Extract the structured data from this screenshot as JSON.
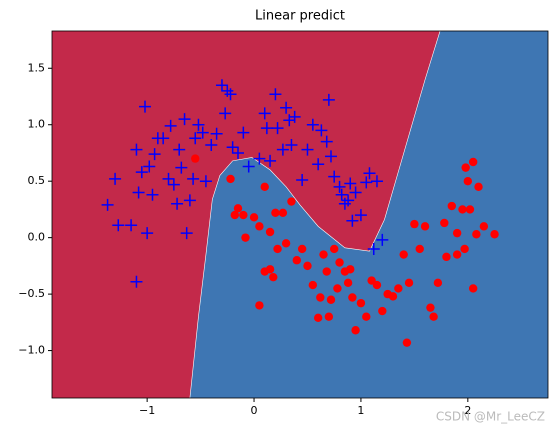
{
  "chart_data": {
    "type": "scatter",
    "title": "Linear predict",
    "xlim": [
      -1.89,
      2.75
    ],
    "ylim": [
      -1.42,
      1.83
    ],
    "xticks": [
      {
        "value": -1,
        "label": "−1"
      },
      0,
      1,
      2
    ],
    "yticks": [
      {
        "value": 1.5,
        "label": "1.5"
      },
      {
        "value": 1.0,
        "label": "1.0"
      },
      {
        "value": 0.5,
        "label": "0.5"
      },
      {
        "value": 0.0,
        "label": "0.0"
      },
      {
        "value": -0.5,
        "label": "−0.5"
      },
      {
        "value": -1.0,
        "label": "−1.0"
      }
    ],
    "boundary": {
      "left_color": "#c3294a",
      "right_color": "#3e76b3",
      "x": [
        -0.6,
        -0.52,
        -0.45,
        -0.39,
        -0.32,
        -0.2,
        -0.02,
        0.15,
        0.3,
        0.43,
        0.6,
        0.85,
        1.08,
        1.22,
        1.41,
        1.6,
        1.74
      ],
      "y": [
        -1.42,
        -0.7,
        -0.15,
        0.34,
        0.55,
        0.68,
        0.71,
        0.6,
        0.45,
        0.29,
        0.1,
        -0.09,
        -0.12,
        0.16,
        0.78,
        1.4,
        1.83
      ]
    },
    "series": [
      {
        "color": "#0000ff",
        "marker": "plus",
        "x": [
          -1.37,
          -1.3,
          -1.27,
          -1.15,
          -1.1,
          -1.1,
          -1.08,
          -1.05,
          -1.02,
          -1.0,
          -0.98,
          -0.95,
          -0.93,
          -0.9,
          -0.85,
          -0.8,
          -0.78,
          -0.75,
          -0.72,
          -0.7,
          -0.68,
          -0.65,
          -0.63,
          -0.6,
          -0.57,
          -0.55,
          -0.52,
          -0.48,
          -0.45,
          -0.4,
          -0.35,
          -0.3,
          -0.27,
          -0.25,
          -0.22,
          -0.2,
          -0.15,
          -0.1,
          -0.05,
          0.05,
          0.1,
          0.12,
          0.15,
          0.2,
          0.22,
          0.27,
          0.3,
          0.33,
          0.35,
          0.38,
          0.45,
          0.5,
          0.55,
          0.6,
          0.63,
          0.68,
          0.7,
          0.72,
          0.75,
          0.8,
          0.82,
          0.85,
          0.88,
          0.9,
          0.95,
          1.0,
          1.05,
          1.08,
          1.15,
          1.2,
          1.12,
          0.92
        ],
        "y": [
          0.29,
          0.52,
          0.11,
          0.11,
          0.78,
          -0.39,
          0.4,
          0.58,
          1.16,
          0.04,
          0.63,
          0.38,
          0.74,
          0.88,
          0.88,
          0.52,
          0.99,
          0.47,
          0.3,
          0.78,
          0.62,
          1.05,
          0.04,
          0.33,
          0.52,
          0.88,
          1.0,
          0.93,
          0.5,
          0.82,
          0.92,
          1.35,
          1.1,
          1.3,
          1.27,
          0.8,
          0.75,
          0.93,
          0.63,
          0.7,
          1.1,
          0.97,
          0.68,
          1.27,
          0.97,
          0.78,
          1.15,
          1.04,
          0.82,
          1.07,
          0.51,
          0.78,
          1.0,
          0.65,
          0.95,
          0.85,
          1.22,
          0.72,
          0.54,
          0.45,
          0.38,
          0.3,
          0.33,
          0.48,
          0.4,
          0.2,
          0.49,
          0.57,
          0.5,
          -0.02,
          -0.1,
          0.15
        ]
      },
      {
        "color": "#ff0000",
        "marker": "circle",
        "x": [
          -0.55,
          -0.22,
          0.2,
          -0.15,
          -0.18,
          -0.1,
          -0.08,
          0,
          0.05,
          0.05,
          0.1,
          0.1,
          0.15,
          0.15,
          0.18,
          0.22,
          0.27,
          0.3,
          0.35,
          0.4,
          0.45,
          0.5,
          0.55,
          0.6,
          0.62,
          0.65,
          0.68,
          0.7,
          0.72,
          0.75,
          0.78,
          0.8,
          0.85,
          0.88,
          0.9,
          0.92,
          0.95,
          1.0,
          1.05,
          1.1,
          1.15,
          1.2,
          1.25,
          1.3,
          1.35,
          1.4,
          1.43,
          1.45,
          1.5,
          1.55,
          1.6,
          1.65,
          1.68,
          1.72,
          1.78,
          1.8,
          1.85,
          1.9,
          1.95,
          1.98,
          2.0,
          2.02,
          2.05,
          2.05,
          2.08,
          2.1,
          2.15,
          2.25,
          1.9,
          1.97
        ],
        "y": [
          0.7,
          0.52,
          0.22,
          0.26,
          0.2,
          0.2,
          0.0,
          0.18,
          -0.6,
          0.1,
          0.45,
          -0.3,
          0.05,
          -0.28,
          -0.35,
          -0.1,
          0.22,
          -0.05,
          0.32,
          -0.2,
          -0.1,
          -0.25,
          -0.42,
          -0.71,
          -0.53,
          -0.15,
          -0.3,
          -0.7,
          -0.55,
          -0.1,
          -0.45,
          -0.22,
          -0.3,
          -0.4,
          -0.28,
          -0.53,
          -0.82,
          -0.58,
          -0.7,
          -0.38,
          -0.42,
          -0.65,
          -0.5,
          -0.52,
          -0.45,
          -0.15,
          -0.93,
          -0.4,
          0.12,
          -0.1,
          0.1,
          -0.62,
          -0.7,
          -0.4,
          0.13,
          -0.17,
          0.28,
          0.04,
          0.25,
          0.62,
          0.5,
          0.25,
          0.67,
          -0.45,
          0.03,
          0.45,
          0.1,
          0.03,
          -0.15,
          -0.1
        ]
      }
    ],
    "watermark": "CSDN @Mr_LeeCZ"
  }
}
